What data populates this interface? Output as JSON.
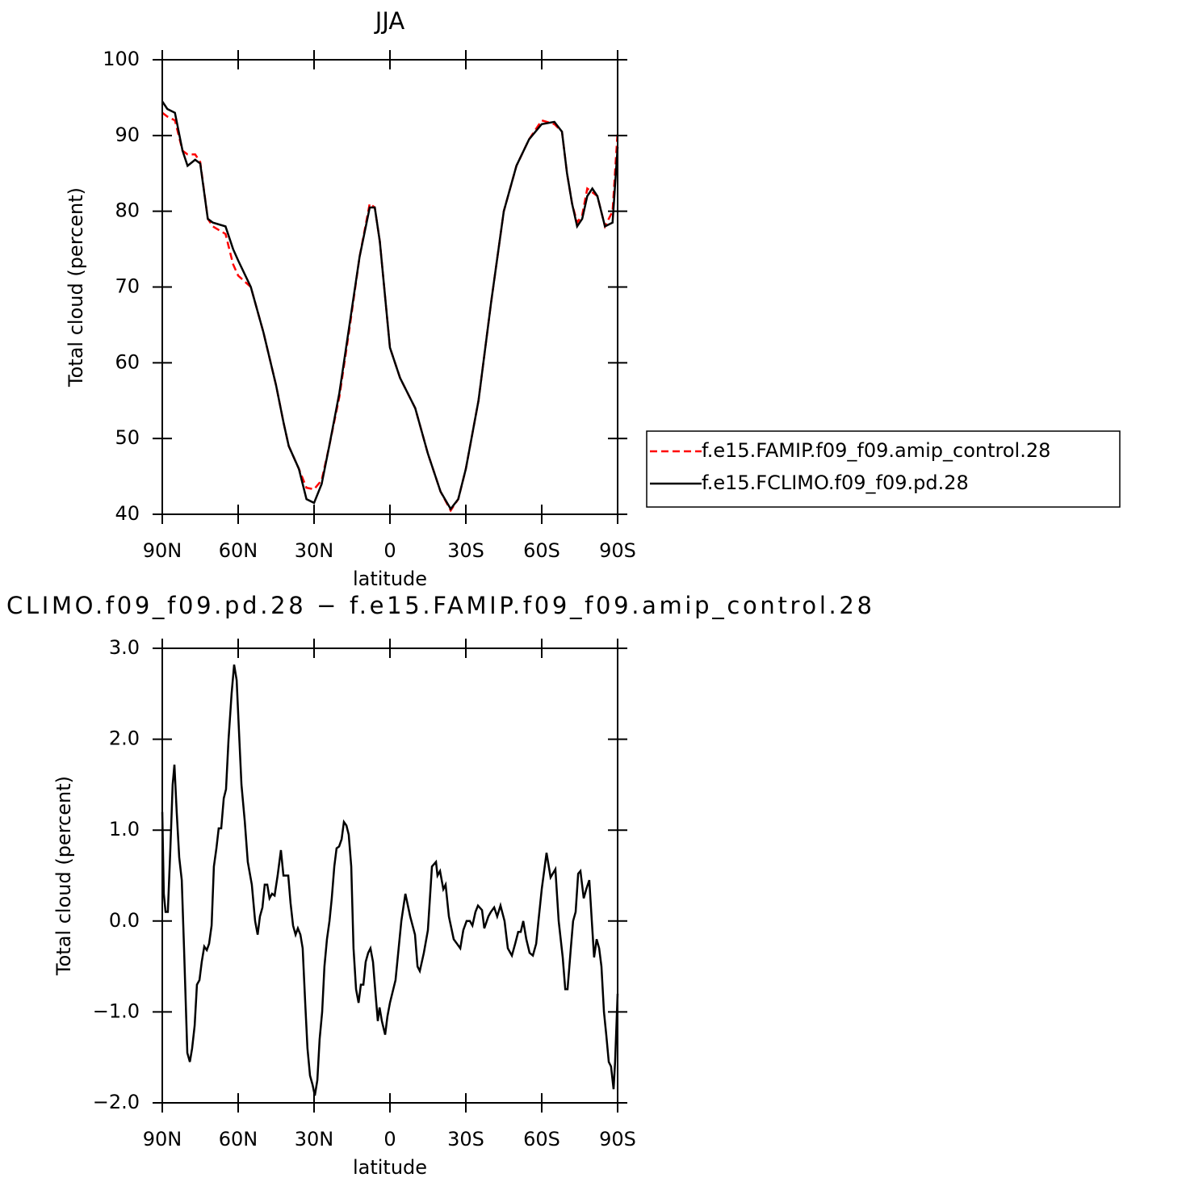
{
  "chart_data": [
    {
      "type": "line",
      "title": "JJA",
      "x_label": "latitude",
      "y_label": "Total cloud (percent)",
      "xlim": [
        90,
        -90
      ],
      "ylim": [
        40,
        100
      ],
      "xticks": [
        {
          "value": 90,
          "label": "90N"
        },
        {
          "value": 60,
          "label": "60N"
        },
        {
          "value": 30,
          "label": "30N"
        },
        0,
        {
          "value": -30,
          "label": "30S"
        },
        {
          "value": -60,
          "label": "60S"
        },
        {
          "value": -90,
          "label": "90S"
        }
      ],
      "yticks": [
        40,
        50,
        60,
        70,
        80,
        90,
        100
      ],
      "legend": "right",
      "x": [
        90,
        88,
        85,
        82,
        80,
        77,
        75,
        72,
        70,
        65,
        62,
        60,
        55,
        50,
        45,
        42,
        40,
        36,
        33,
        30,
        27,
        24,
        20,
        16,
        12,
        8,
        6,
        4,
        0,
        -4,
        -10,
        -15,
        -20,
        -24,
        -27,
        -30,
        -35,
        -40,
        -45,
        -50,
        -55,
        -60,
        -65,
        -68,
        -70,
        -72,
        -74,
        -76,
        -78,
        -80,
        -82,
        -85,
        -88,
        -90
      ],
      "series": [
        {
          "name": "f.e15.FAMIP.f09_f09.amip_control.28",
          "color": "#ff0000",
          "dashed": true,
          "values": [
            93,
            92.5,
            92,
            88,
            87.5,
            87.5,
            86.5,
            79,
            78,
            77,
            73,
            71.5,
            70,
            64,
            57,
            52,
            49,
            46,
            43.5,
            43.3,
            44.5,
            49,
            55.5,
            64.5,
            74,
            81,
            80.5,
            76,
            62,
            58,
            54,
            48,
            43,
            40.5,
            42,
            46,
            55,
            68,
            80,
            86,
            89.5,
            92,
            91.5,
            90.5,
            85,
            81,
            78.5,
            79.5,
            83,
            82.5,
            82,
            78,
            80,
            90.5
          ]
        },
        {
          "name": "f.e15.FCLIMO.f09_f09.pd.28",
          "color": "#000000",
          "dashed": false,
          "values": [
            94.5,
            93.5,
            93,
            88,
            86,
            86.8,
            86.3,
            79,
            78.5,
            78,
            75,
            73.5,
            70,
            64,
            57,
            52,
            49,
            46,
            42,
            41.5,
            44,
            49,
            56,
            65,
            74,
            80.5,
            80.5,
            76,
            62,
            58,
            54,
            48,
            43,
            40.7,
            42,
            46,
            55,
            68,
            80,
            86,
            89.5,
            91.5,
            91.8,
            90.5,
            85,
            81,
            78,
            79,
            82,
            83,
            82,
            78,
            78.5,
            88.5
          ]
        }
      ]
    },
    {
      "type": "line",
      "title": "CLIMO.f09_f09.pd.28 − f.e15.FAMIP.f09_f09.amip_control.28",
      "x_label": "latitude",
      "y_label": "Total cloud (percent)",
      "xlim": [
        90,
        -90
      ],
      "ylim": [
        -2,
        3
      ],
      "xticks": [
        {
          "value": 90,
          "label": "90N"
        },
        {
          "value": 60,
          "label": "60N"
        },
        {
          "value": 30,
          "label": "30N"
        },
        0,
        {
          "value": -30,
          "label": "30S"
        },
        {
          "value": -60,
          "label": "60S"
        },
        {
          "value": -90,
          "label": "90S"
        }
      ],
      "yticks": [
        {
          "value": -2,
          "label": "−2.0"
        },
        {
          "value": -1,
          "label": "−1.0"
        },
        {
          "value": 0,
          "label": "0.0"
        },
        {
          "value": 1,
          "label": "1.0"
        },
        {
          "value": 2,
          "label": "2.0"
        },
        {
          "value": 3,
          "label": "3.0"
        }
      ],
      "x": [
        90,
        89.4,
        88.7,
        87.8,
        86.8,
        85.9,
        85.2,
        84.3,
        83.3,
        82.3,
        81.4,
        80.1,
        79.1,
        78.2,
        77.2,
        76.3,
        75.3,
        74.4,
        73.4,
        72.4,
        71.5,
        70.5,
        69.6,
        68.6,
        67.7,
        66.7,
        65.7,
        64.8,
        63.8,
        62.6,
        61.6,
        60.6,
        59.7,
        58.7,
        57.4,
        56.2,
        54.6,
        53.3,
        52.3,
        51.4,
        50.4,
        49.5,
        48.5,
        47.6,
        46.6,
        45.6,
        44.4,
        43.1,
        42.1,
        41.2,
        40.2,
        39.3,
        38.3,
        37.3,
        36.4,
        35.4,
        34.5,
        33.5,
        32.6,
        31.6,
        30.6,
        29.7,
        28.7,
        27.8,
        26.8,
        25.9,
        24.9,
        23.9,
        23.0,
        22.0,
        21.1,
        20.1,
        19.1,
        18.2,
        17.2,
        16.3,
        15.3,
        14.4,
        13.4,
        12.4,
        11.5,
        10.5,
        9.6,
        8.6,
        7.7,
        6.7,
        5.7,
        4.8,
        4.1,
        3.2,
        1.9,
        1.0,
        0,
        -2.2,
        -4.5,
        -6.1,
        -8.0,
        -9.9,
        -10.9,
        -11.8,
        -13.4,
        -15.0,
        -16.6,
        -18.2,
        -18.8,
        -19.8,
        -21.1,
        -22.0,
        -23.3,
        -25.2,
        -26.5,
        -27.8,
        -29.0,
        -30.3,
        -31.6,
        -32.6,
        -33.8,
        -34.8,
        -36.4,
        -37.3,
        -38.9,
        -39.9,
        -41.2,
        -42.4,
        -43.7,
        -45.3,
        -46.6,
        -48.2,
        -49.5,
        -50.7,
        -51.7,
        -52.7,
        -53.9,
        -55.2,
        -56.5,
        -57.8,
        -58.7,
        -60.0,
        -61.9,
        -63.5,
        -65.4,
        -66.7,
        -68.3,
        -69.3,
        -70.2,
        -71.5,
        -72.4,
        -73.4,
        -74.4,
        -75.3,
        -76.6,
        -77.6,
        -78.8,
        -79.8,
        -80.7,
        -81.7,
        -82.7,
        -83.6,
        -84.6,
        -85.5,
        -86.5,
        -87.4,
        -88.4,
        -89.0,
        -90
      ],
      "series": [
        {
          "color": "#000000",
          "dashed": false,
          "values": [
            1.2,
            0.3,
            0.1,
            0.1,
            0.8,
            1.5,
            1.72,
            1.2,
            0.7,
            0.45,
            -0.3,
            -1.45,
            -1.55,
            -1.4,
            -1.15,
            -0.7,
            -0.65,
            -0.45,
            -0.28,
            -0.32,
            -0.25,
            -0.05,
            0.6,
            0.8,
            1.02,
            1.02,
            1.35,
            1.45,
            2.0,
            2.5,
            2.82,
            2.65,
            2.1,
            1.5,
            1.1,
            0.65,
            0.4,
            0.0,
            -0.15,
            0.05,
            0.15,
            0.4,
            0.4,
            0.25,
            0.3,
            0.28,
            0.5,
            0.78,
            0.5,
            0.5,
            0.5,
            0.2,
            -0.05,
            -0.15,
            -0.08,
            -0.15,
            -0.3,
            -0.9,
            -1.4,
            -1.7,
            -1.8,
            -1.92,
            -1.75,
            -1.3,
            -1.0,
            -0.5,
            -0.2,
            0.0,
            0.25,
            0.6,
            0.8,
            0.82,
            0.9,
            1.09,
            1.05,
            0.95,
            0.6,
            -0.3,
            -0.75,
            -0.9,
            -0.7,
            -0.7,
            -0.45,
            -0.35,
            -0.3,
            -0.45,
            -0.8,
            -1.1,
            -0.95,
            -1.1,
            -1.25,
            -1.05,
            -0.9,
            -0.65,
            0.0,
            0.3,
            0.05,
            -0.15,
            -0.5,
            -0.55,
            -0.35,
            -0.1,
            0.6,
            0.65,
            0.5,
            0.55,
            0.35,
            0.4,
            0.05,
            -0.2,
            -0.25,
            -0.3,
            -0.1,
            0.0,
            0.0,
            -0.05,
            0.1,
            0.17,
            0.12,
            -0.08,
            0.05,
            0.1,
            0.15,
            0.05,
            0.17,
            0.0,
            -0.3,
            -0.38,
            -0.25,
            -0.12,
            -0.12,
            0.0,
            -0.2,
            -0.35,
            -0.38,
            -0.25,
            0.0,
            0.35,
            0.75,
            0.48,
            0.57,
            0.0,
            -0.4,
            -0.75,
            -0.75,
            -0.3,
            0.0,
            0.1,
            0.52,
            0.55,
            0.25,
            0.35,
            0.45,
            0.0,
            -0.4,
            -0.2,
            -0.3,
            -0.5,
            -1.0,
            -1.25,
            -1.55,
            -1.6,
            -1.85,
            -1.55,
            -0.8
          ]
        }
      ]
    }
  ]
}
